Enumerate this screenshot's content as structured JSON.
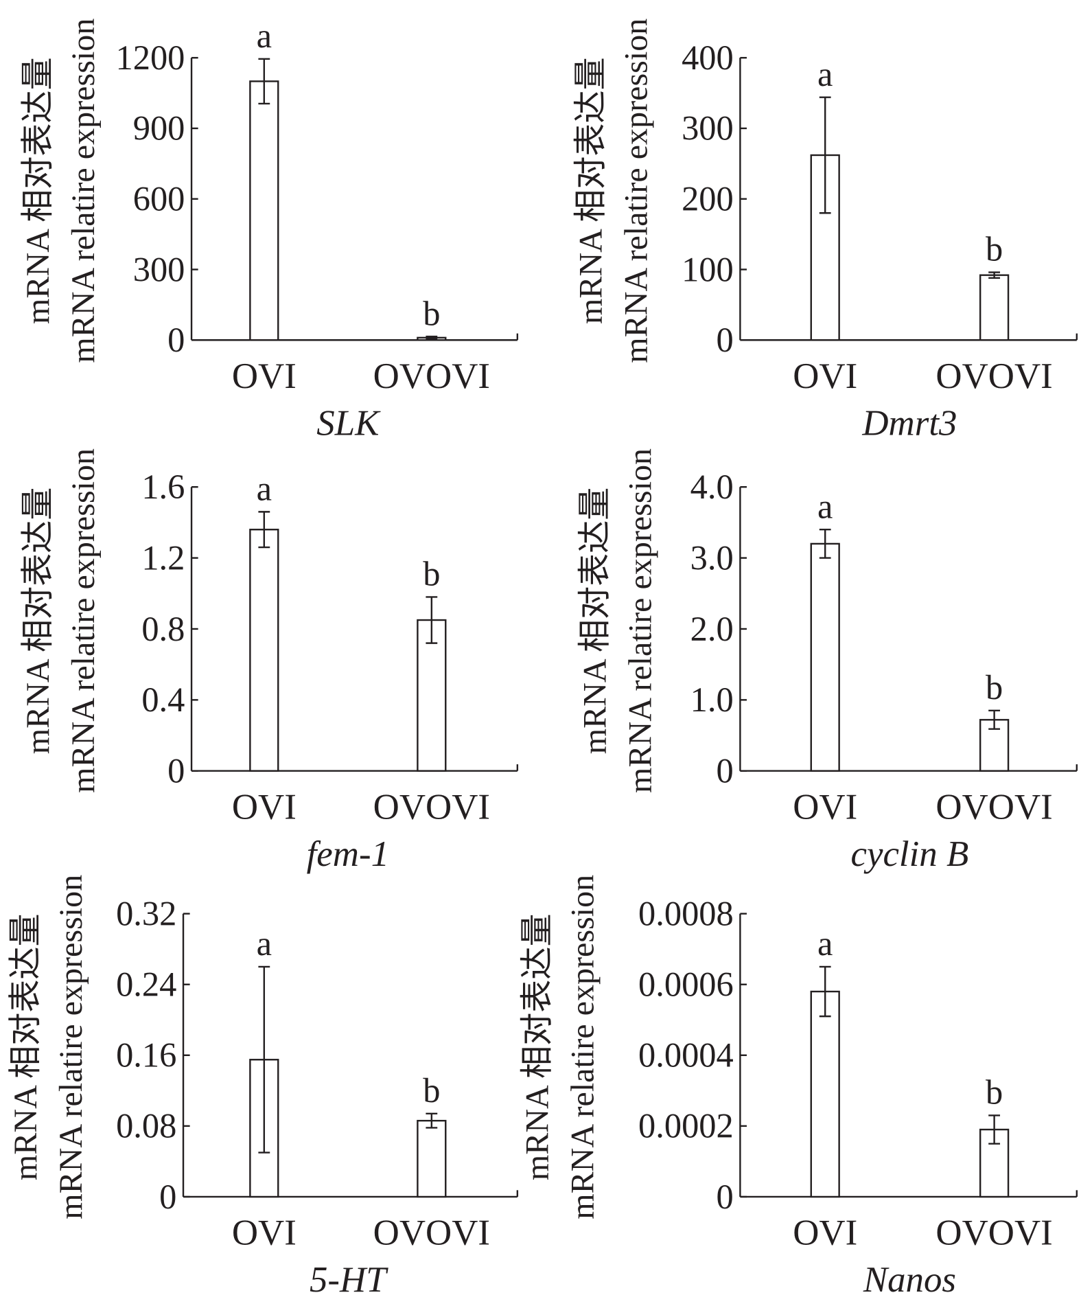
{
  "chart_data": [
    {
      "type": "bar",
      "title": "SLK",
      "categories": [
        "OVI",
        "OVOVI"
      ],
      "values": [
        1100,
        10
      ],
      "errors": [
        95,
        5
      ],
      "significance": [
        "a",
        "b"
      ],
      "ylim": [
        0,
        1200
      ],
      "yticks": [
        0,
        300,
        600,
        900,
        1200
      ],
      "ytick_labels": [
        "0",
        "300",
        "600",
        "900",
        "1200"
      ],
      "ylabel": [
        "mRNA 相对表达量",
        "mRNA relatire expression"
      ]
    },
    {
      "type": "bar",
      "title": "Dmrt3",
      "categories": [
        "OVI",
        "OVOVI"
      ],
      "values": [
        262,
        92
      ],
      "errors": [
        82,
        4
      ],
      "significance": [
        "a",
        "b"
      ],
      "ylim": [
        0,
        400
      ],
      "yticks": [
        0,
        100,
        200,
        300,
        400
      ],
      "ytick_labels": [
        "0",
        "100",
        "200",
        "300",
        "400"
      ],
      "ylabel": [
        "mRNA 相对表达量",
        "mRNA relatire expression"
      ]
    },
    {
      "type": "bar",
      "title": "fem-1",
      "categories": [
        "OVI",
        "OVOVI"
      ],
      "values": [
        1.36,
        0.85
      ],
      "errors": [
        0.1,
        0.13
      ],
      "significance": [
        "a",
        "b"
      ],
      "ylim": [
        0,
        1.6
      ],
      "yticks": [
        0,
        0.4,
        0.8,
        1.2,
        1.6
      ],
      "ytick_labels": [
        "0",
        "0.4",
        "0.8",
        "1.2",
        "1.6"
      ],
      "ylabel": [
        "mRNA 相对表达量",
        "mRNA relatire expression"
      ]
    },
    {
      "type": "bar",
      "title": "cyclin B",
      "categories": [
        "OVI",
        "OVOVI"
      ],
      "values": [
        3.2,
        0.72
      ],
      "errors": [
        0.2,
        0.13
      ],
      "significance": [
        "a",
        "b"
      ],
      "ylim": [
        0,
        4.0
      ],
      "yticks": [
        0,
        1,
        2,
        3,
        4
      ],
      "ytick_labels": [
        "0",
        "1.0",
        "2.0",
        "3.0",
        "4.0"
      ],
      "ylabel": [
        "mRNA 相对表达量",
        "mRNA relatire expression"
      ]
    },
    {
      "type": "bar",
      "title": "5-HT",
      "categories": [
        "OVI",
        "OVOVI"
      ],
      "values": [
        0.155,
        0.086
      ],
      "errors": [
        0.105,
        0.008
      ],
      "significance": [
        "a",
        "b"
      ],
      "ylim": [
        0,
        0.32
      ],
      "yticks": [
        0,
        0.08,
        0.16,
        0.24,
        0.32
      ],
      "ytick_labels": [
        "0",
        "0.08",
        "0.16",
        "0.24",
        "0.32"
      ],
      "ylabel": [
        "mRNA 相对表达量",
        "mRNA relatire expression"
      ]
    },
    {
      "type": "bar",
      "title": "Nanos",
      "categories": [
        "OVI",
        "OVOVI"
      ],
      "values": [
        0.00058,
        0.00019
      ],
      "errors": [
        7e-05,
        4e-05
      ],
      "significance": [
        "a",
        "b"
      ],
      "ylim": [
        0,
        0.0008
      ],
      "yticks": [
        0,
        0.0002,
        0.0004,
        0.0006,
        0.0008
      ],
      "ytick_labels": [
        "0",
        "0.0002",
        "0.0004",
        "0.0006",
        "0.0008"
      ],
      "ylabel": [
        "mRNA 相对表达量",
        "mRNA relatire expression"
      ]
    }
  ]
}
